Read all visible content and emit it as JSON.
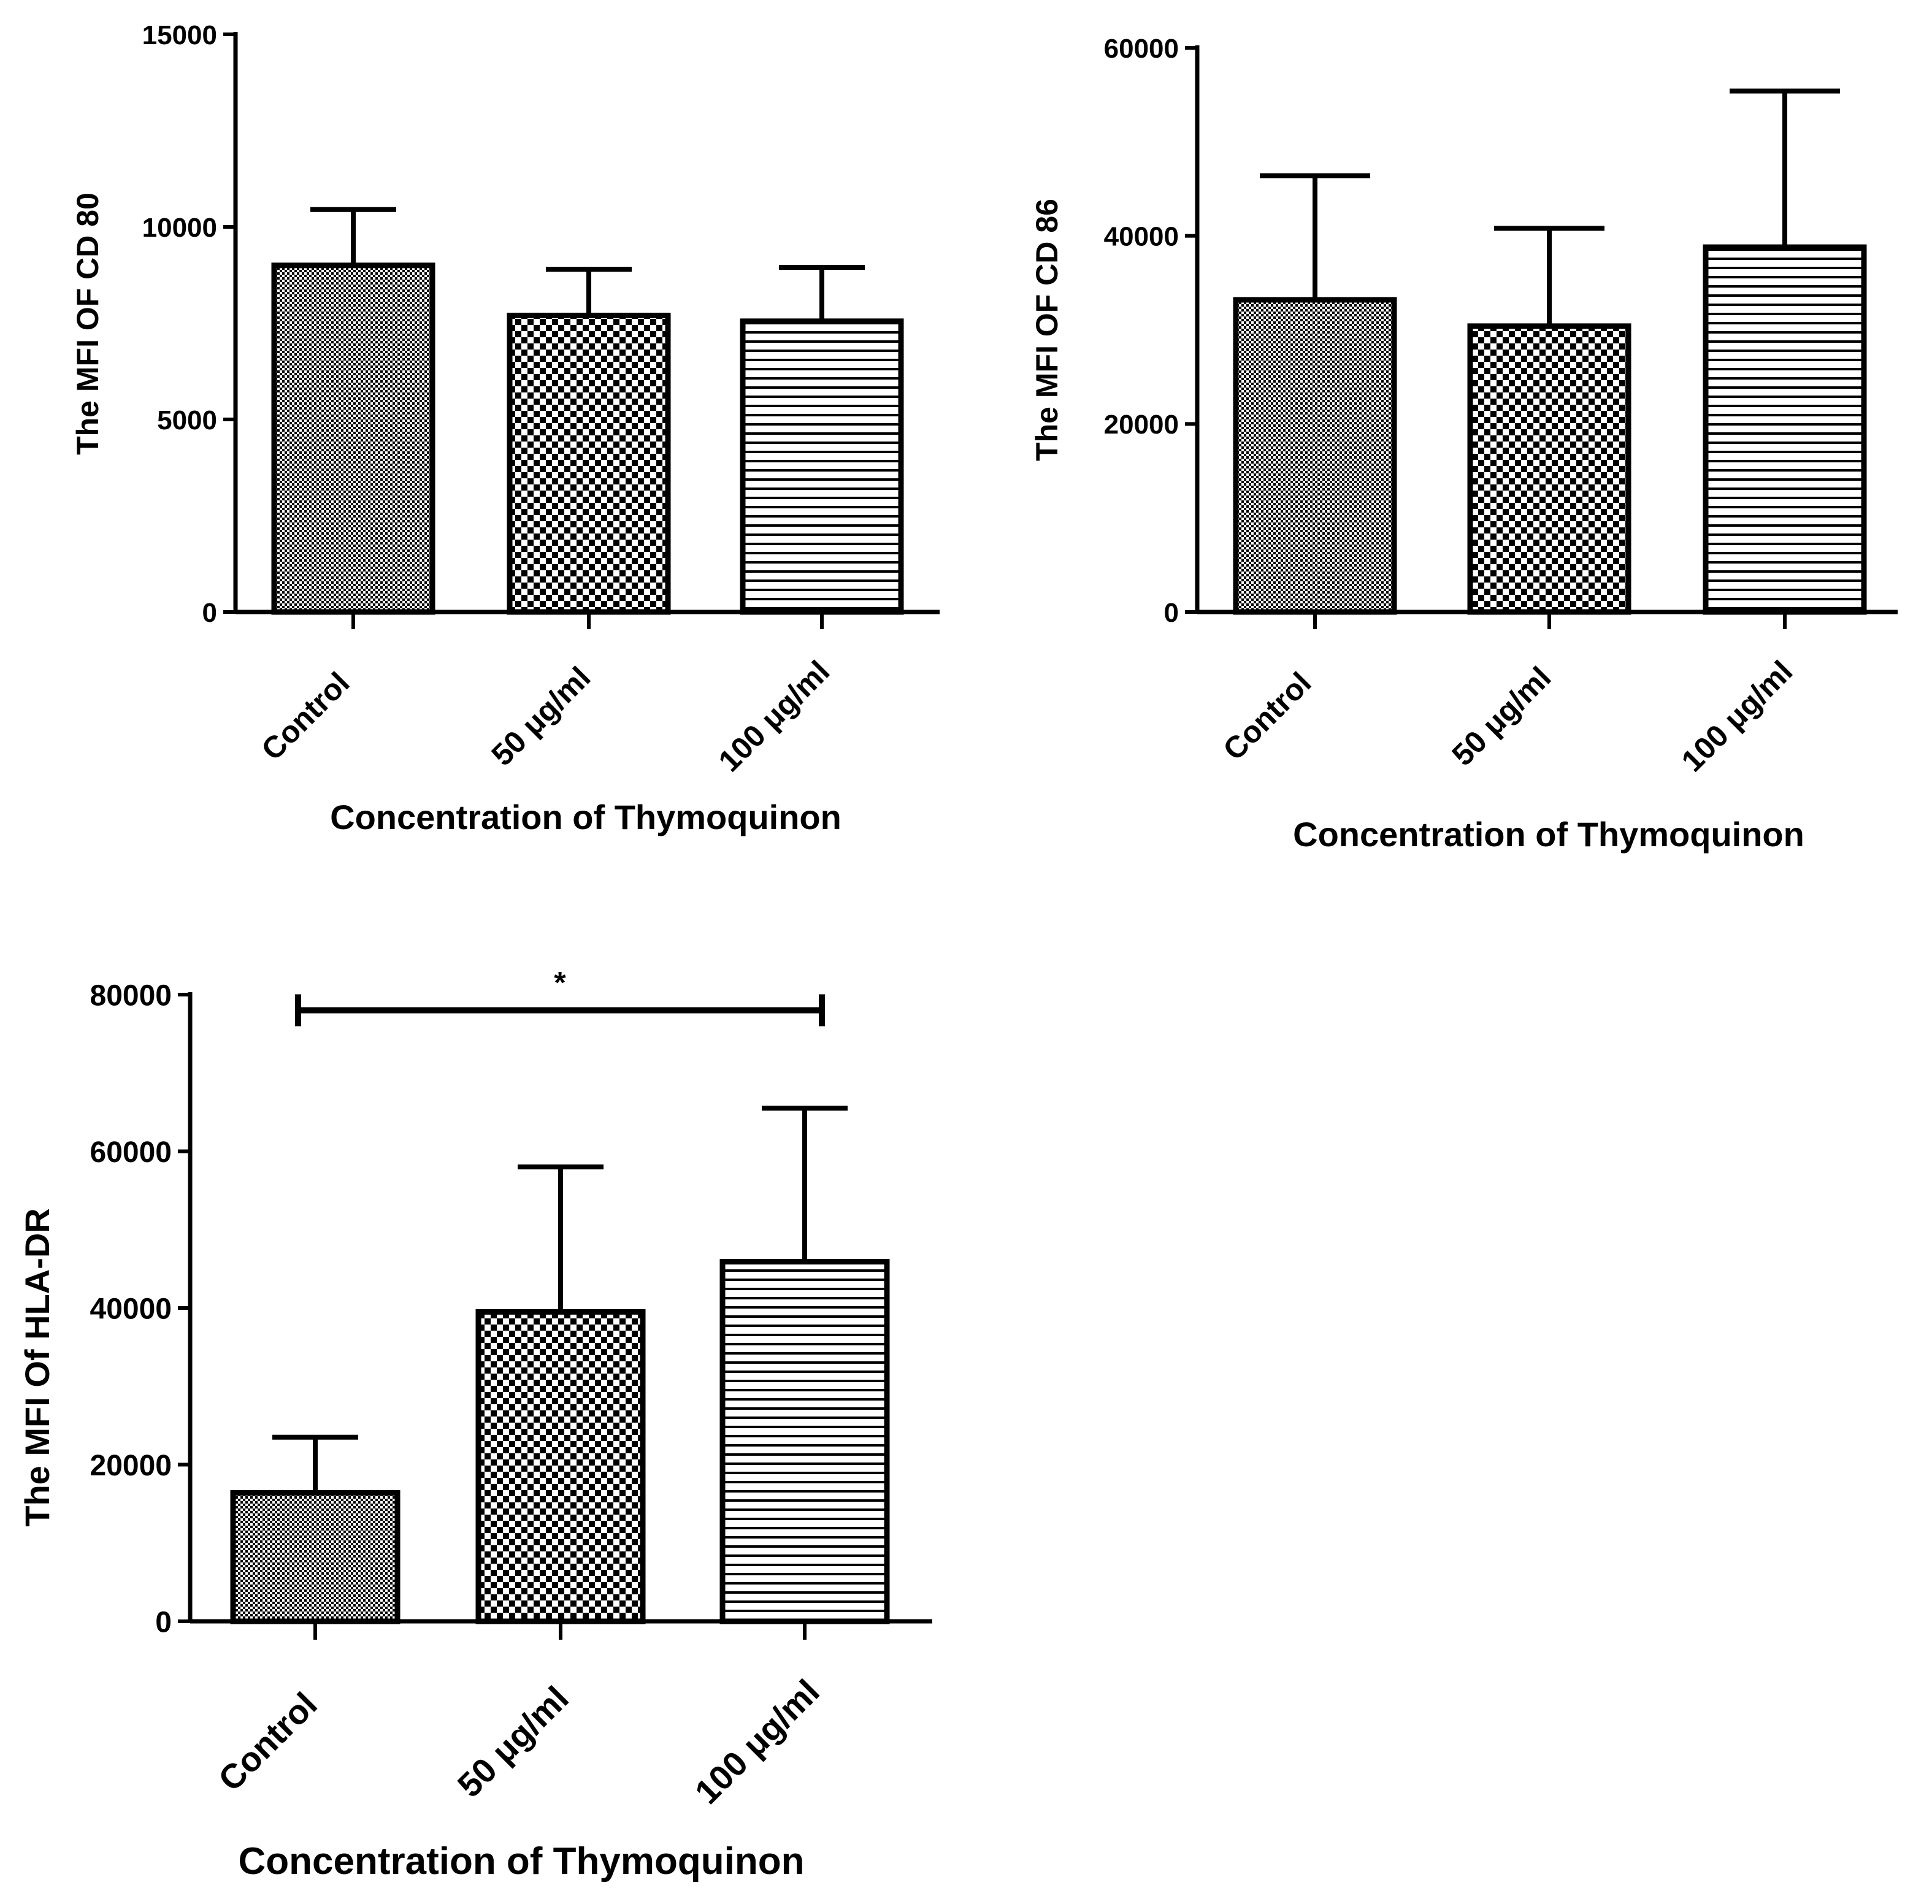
{
  "chart_data": [
    {
      "id": "cd80",
      "type": "bar",
      "title": "",
      "xlabel": "Concentration of Thymoquinon",
      "ylabel": "The MFI OF CD 80",
      "ylim": [
        0,
        15000
      ],
      "yticks": [
        0,
        5000,
        10000,
        15000
      ],
      "categories": [
        "Control",
        "50 μg/ml",
        "100 μg/ml"
      ],
      "values": [
        9000,
        7700,
        7550
      ],
      "error_upper": [
        10450,
        8900,
        8950
      ],
      "patterns": [
        "fine-dots",
        "checker",
        "hlines"
      ],
      "significance": null
    },
    {
      "id": "cd86",
      "type": "bar",
      "title": "",
      "xlabel": "Concentration of Thymoquinon",
      "ylabel": "The MFI OF CD 86",
      "ylim": [
        0,
        60000
      ],
      "yticks": [
        0,
        20000,
        40000,
        60000
      ],
      "categories": [
        "Control",
        "50 μg/ml",
        "100 μg/ml"
      ],
      "values": [
        33200,
        30400,
        38800
      ],
      "error_upper": [
        46400,
        40800,
        55400
      ],
      "patterns": [
        "fine-dots",
        "checker",
        "hlines"
      ],
      "significance": null
    },
    {
      "id": "hladr",
      "type": "bar",
      "title": "",
      "xlabel": "Concentration of Thymoquinon",
      "ylabel": "The MFI Of HLA-DR",
      "ylim": [
        0,
        80000
      ],
      "yticks": [
        0,
        20000,
        40000,
        60000,
        80000
      ],
      "categories": [
        "Control",
        "50 μg/ml",
        "100 μg/ml"
      ],
      "values": [
        16400,
        39500,
        45900
      ],
      "error_upper": [
        23500,
        58000,
        65500
      ],
      "patterns": [
        "fine-dots",
        "checker",
        "hlines"
      ],
      "significance": {
        "from": 0,
        "to": 2,
        "value": 78000,
        "label": "*"
      }
    }
  ]
}
